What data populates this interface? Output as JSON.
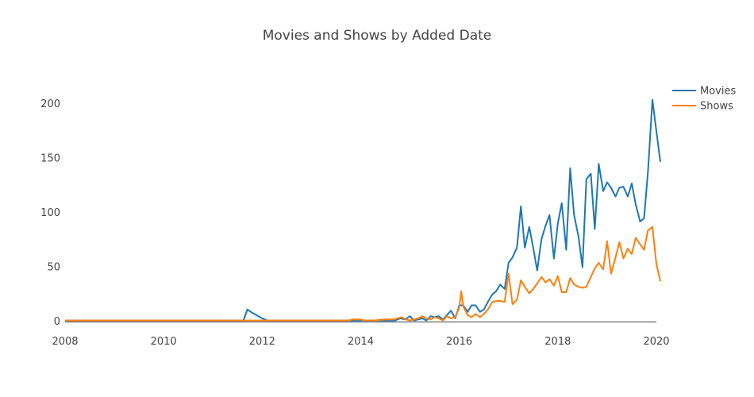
{
  "chart_data": {
    "type": "line",
    "title": "Movies and Shows by Added Date",
    "xlabel": "",
    "ylabel": "",
    "xlim": [
      2008,
      2020
    ],
    "ylim": [
      0,
      230
    ],
    "x_ticks": [
      "2008",
      "2010",
      "2012",
      "2014",
      "2016",
      "2018",
      "2020"
    ],
    "y_ticks": [
      "0",
      "50",
      "100",
      "150",
      "200"
    ],
    "grid": false,
    "legend": "right",
    "series": [
      {
        "name": "Movies",
        "color": "#1f77b4",
        "points": [
          [
            2008.0,
            1
          ],
          [
            2008.5,
            1
          ],
          [
            2009.0,
            1
          ],
          [
            2009.5,
            1
          ],
          [
            2010.0,
            1
          ],
          [
            2010.5,
            1
          ],
          [
            2011.0,
            1
          ],
          [
            2011.5,
            1
          ],
          [
            2011.62,
            1
          ],
          [
            2011.7,
            11
          ],
          [
            2011.8,
            8
          ],
          [
            2012.0,
            3
          ],
          [
            2012.1,
            1
          ],
          [
            2012.5,
            1
          ],
          [
            2013.0,
            1
          ],
          [
            2013.5,
            1
          ],
          [
            2014.0,
            1
          ],
          [
            2014.5,
            1
          ],
          [
            2014.7,
            1
          ],
          [
            2014.8,
            3
          ],
          [
            2014.9,
            2
          ],
          [
            2015.0,
            5
          ],
          [
            2015.08,
            1
          ],
          [
            2015.17,
            2
          ],
          [
            2015.25,
            3
          ],
          [
            2015.33,
            1
          ],
          [
            2015.42,
            5
          ],
          [
            2015.5,
            4
          ],
          [
            2015.58,
            5
          ],
          [
            2015.67,
            2
          ],
          [
            2015.75,
            6
          ],
          [
            2015.83,
            10
          ],
          [
            2015.92,
            3
          ],
          [
            2016.0,
            15
          ],
          [
            2016.08,
            15
          ],
          [
            2016.17,
            9
          ],
          [
            2016.25,
            15
          ],
          [
            2016.33,
            15
          ],
          [
            2016.42,
            9
          ],
          [
            2016.5,
            11
          ],
          [
            2016.58,
            18
          ],
          [
            2016.67,
            25
          ],
          [
            2016.75,
            28
          ],
          [
            2016.83,
            34
          ],
          [
            2016.92,
            30
          ],
          [
            2017.0,
            54
          ],
          [
            2017.08,
            59
          ],
          [
            2017.17,
            68
          ],
          [
            2017.25,
            106
          ],
          [
            2017.33,
            68
          ],
          [
            2017.42,
            87
          ],
          [
            2017.5,
            68
          ],
          [
            2017.58,
            47
          ],
          [
            2017.67,
            76
          ],
          [
            2017.75,
            88
          ],
          [
            2017.83,
            98
          ],
          [
            2017.92,
            58
          ],
          [
            2018.0,
            90
          ],
          [
            2018.08,
            109
          ],
          [
            2018.17,
            66
          ],
          [
            2018.25,
            141
          ],
          [
            2018.33,
            98
          ],
          [
            2018.42,
            78
          ],
          [
            2018.5,
            50
          ],
          [
            2018.58,
            131
          ],
          [
            2018.67,
            136
          ],
          [
            2018.75,
            85
          ],
          [
            2018.83,
            145
          ],
          [
            2018.92,
            120
          ],
          [
            2019.0,
            128
          ],
          [
            2019.08,
            123
          ],
          [
            2019.17,
            115
          ],
          [
            2019.25,
            123
          ],
          [
            2019.33,
            124
          ],
          [
            2019.42,
            115
          ],
          [
            2019.5,
            127
          ],
          [
            2019.58,
            108
          ],
          [
            2019.67,
            92
          ],
          [
            2019.75,
            95
          ],
          [
            2019.83,
            138
          ],
          [
            2019.92,
            204
          ],
          [
            2020.0,
            175
          ],
          [
            2020.08,
            147
          ]
        ]
      },
      {
        "name": "Shows",
        "color": "#ff7f0e",
        "points": [
          [
            2008.0,
            1
          ],
          [
            2008.5,
            1
          ],
          [
            2009.0,
            1
          ],
          [
            2009.5,
            1
          ],
          [
            2010.0,
            1
          ],
          [
            2010.5,
            1
          ],
          [
            2011.0,
            1
          ],
          [
            2011.5,
            1
          ],
          [
            2012.0,
            1
          ],
          [
            2012.5,
            1
          ],
          [
            2013.0,
            1
          ],
          [
            2013.5,
            1
          ],
          [
            2013.75,
            1
          ],
          [
            2013.83,
            2
          ],
          [
            2014.0,
            2
          ],
          [
            2014.08,
            1
          ],
          [
            2014.25,
            1
          ],
          [
            2014.5,
            2
          ],
          [
            2014.67,
            2
          ],
          [
            2014.75,
            3
          ],
          [
            2014.83,
            4
          ],
          [
            2014.92,
            2
          ],
          [
            2015.0,
            1
          ],
          [
            2015.08,
            2
          ],
          [
            2015.17,
            3
          ],
          [
            2015.25,
            5
          ],
          [
            2015.33,
            3
          ],
          [
            2015.42,
            2
          ],
          [
            2015.5,
            4
          ],
          [
            2015.58,
            3
          ],
          [
            2015.67,
            1
          ],
          [
            2015.75,
            5
          ],
          [
            2015.83,
            3
          ],
          [
            2015.92,
            4
          ],
          [
            2016.0,
            13
          ],
          [
            2016.04,
            28
          ],
          [
            2016.08,
            14
          ],
          [
            2016.17,
            6
          ],
          [
            2016.25,
            4
          ],
          [
            2016.33,
            7
          ],
          [
            2016.42,
            4
          ],
          [
            2016.5,
            7
          ],
          [
            2016.58,
            11
          ],
          [
            2016.67,
            18
          ],
          [
            2016.75,
            19
          ],
          [
            2016.83,
            19
          ],
          [
            2016.92,
            18
          ],
          [
            2017.0,
            44
          ],
          [
            2017.08,
            16
          ],
          [
            2017.17,
            20
          ],
          [
            2017.25,
            38
          ],
          [
            2017.33,
            32
          ],
          [
            2017.42,
            26
          ],
          [
            2017.5,
            30
          ],
          [
            2017.58,
            35
          ],
          [
            2017.67,
            41
          ],
          [
            2017.75,
            36
          ],
          [
            2017.83,
            39
          ],
          [
            2017.92,
            33
          ],
          [
            2018.0,
            42
          ],
          [
            2018.08,
            27
          ],
          [
            2018.17,
            27
          ],
          [
            2018.25,
            40
          ],
          [
            2018.33,
            34
          ],
          [
            2018.42,
            32
          ],
          [
            2018.5,
            31
          ],
          [
            2018.58,
            32
          ],
          [
            2018.67,
            41
          ],
          [
            2018.75,
            49
          ],
          [
            2018.83,
            54
          ],
          [
            2018.92,
            48
          ],
          [
            2019.0,
            74
          ],
          [
            2019.08,
            44
          ],
          [
            2019.17,
            59
          ],
          [
            2019.25,
            73
          ],
          [
            2019.33,
            58
          ],
          [
            2019.42,
            67
          ],
          [
            2019.5,
            62
          ],
          [
            2019.58,
            77
          ],
          [
            2019.67,
            71
          ],
          [
            2019.75,
            66
          ],
          [
            2019.83,
            84
          ],
          [
            2019.92,
            87
          ],
          [
            2020.0,
            53
          ],
          [
            2020.08,
            37
          ]
        ]
      }
    ]
  }
}
